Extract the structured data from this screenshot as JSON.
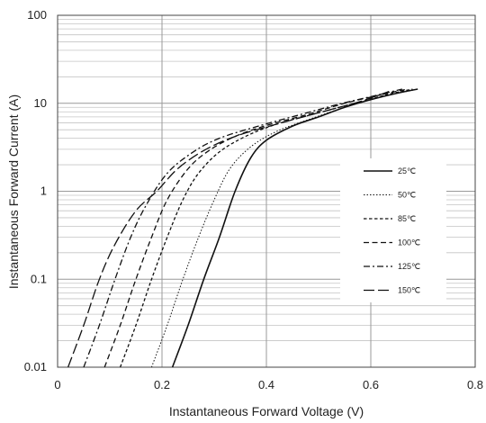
{
  "chart_data": {
    "type": "line",
    "title": "",
    "xlabel": "Instantaneous Forward Voltage (V)",
    "ylabel": "Instantaneous Forward Current (A)",
    "xlim": [
      0,
      0.8
    ],
    "ylim": [
      0.01,
      100
    ],
    "yscale": "log",
    "grid": true,
    "legend_position": "right",
    "x_ticks": [
      "0",
      "0.2",
      "0.4",
      "0.6",
      "0.8"
    ],
    "y_ticks": [
      "0.01",
      "0.1",
      "1",
      "10",
      "100"
    ],
    "series": [
      {
        "name": "25℃",
        "dash": "solid",
        "points": [
          [
            0.22,
            0.01
          ],
          [
            0.25,
            0.03
          ],
          [
            0.28,
            0.1
          ],
          [
            0.31,
            0.3
          ],
          [
            0.34,
            1.0
          ],
          [
            0.37,
            2.4
          ],
          [
            0.4,
            3.8
          ],
          [
            0.45,
            5.5
          ],
          [
            0.5,
            7.0
          ],
          [
            0.55,
            9.0
          ],
          [
            0.6,
            11.0
          ],
          [
            0.65,
            13.0
          ],
          [
            0.69,
            14.5
          ]
        ]
      },
      {
        "name": "50℃",
        "dash": "dotted",
        "points": [
          [
            0.18,
            0.01
          ],
          [
            0.21,
            0.03
          ],
          [
            0.24,
            0.1
          ],
          [
            0.27,
            0.3
          ],
          [
            0.3,
            0.8
          ],
          [
            0.33,
            1.8
          ],
          [
            0.37,
            3.2
          ],
          [
            0.42,
            4.8
          ],
          [
            0.48,
            6.5
          ],
          [
            0.55,
            9.0
          ],
          [
            0.6,
            11.0
          ],
          [
            0.65,
            13.0
          ],
          [
            0.68,
            14.0
          ]
        ]
      },
      {
        "name": "85℃",
        "dash": "short-dash",
        "points": [
          [
            0.12,
            0.01
          ],
          [
            0.15,
            0.03
          ],
          [
            0.18,
            0.1
          ],
          [
            0.21,
            0.3
          ],
          [
            0.24,
            0.8
          ],
          [
            0.27,
            1.6
          ],
          [
            0.31,
            2.8
          ],
          [
            0.36,
            4.2
          ],
          [
            0.42,
            5.8
          ],
          [
            0.5,
            7.8
          ],
          [
            0.57,
            10.0
          ],
          [
            0.63,
            12.5
          ],
          [
            0.68,
            14.5
          ]
        ]
      },
      {
        "name": "100℃",
        "dash": "dash",
        "points": [
          [
            0.09,
            0.01
          ],
          [
            0.12,
            0.03
          ],
          [
            0.15,
            0.1
          ],
          [
            0.18,
            0.3
          ],
          [
            0.21,
            0.8
          ],
          [
            0.25,
            1.8
          ],
          [
            0.29,
            2.9
          ],
          [
            0.34,
            4.2
          ],
          [
            0.4,
            5.6
          ],
          [
            0.48,
            7.5
          ],
          [
            0.55,
            10.0
          ],
          [
            0.62,
            12.5
          ],
          [
            0.67,
            14.5
          ]
        ]
      },
      {
        "name": "125℃",
        "dash": "dash-dot",
        "points": [
          [
            0.05,
            0.01
          ],
          [
            0.08,
            0.03
          ],
          [
            0.11,
            0.1
          ],
          [
            0.14,
            0.3
          ],
          [
            0.17,
            0.7
          ],
          [
            0.21,
            1.6
          ],
          [
            0.26,
            2.8
          ],
          [
            0.31,
            4.0
          ],
          [
            0.38,
            5.4
          ],
          [
            0.46,
            7.3
          ],
          [
            0.54,
            9.8
          ],
          [
            0.61,
            12.3
          ],
          [
            0.66,
            14.5
          ]
        ]
      },
      {
        "name": "150℃",
        "dash": "long-dash",
        "points": [
          [
            0.02,
            0.01
          ],
          [
            0.05,
            0.03
          ],
          [
            0.08,
            0.1
          ],
          [
            0.11,
            0.25
          ],
          [
            0.15,
            0.6
          ],
          [
            0.19,
            1.0
          ],
          [
            0.23,
            1.8
          ],
          [
            0.28,
            2.9
          ],
          [
            0.34,
            4.2
          ],
          [
            0.42,
            5.8
          ],
          [
            0.5,
            7.8
          ],
          [
            0.58,
            10.5
          ],
          [
            0.64,
            14.0
          ]
        ]
      }
    ]
  }
}
